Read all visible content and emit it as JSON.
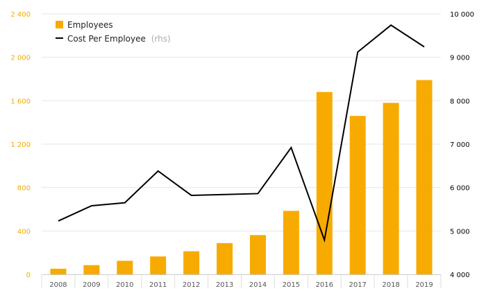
{
  "chart_data": {
    "type": "bar",
    "categories": [
      "2008",
      "2009",
      "2010",
      "2011",
      "2012",
      "2013",
      "2014",
      "2015",
      "2016",
      "2017",
      "2018",
      "2019"
    ],
    "series": [
      {
        "name": "Employees",
        "type": "bar",
        "axis": "left",
        "color": "#f7ab00",
        "values": [
          52,
          85,
          125,
          165,
          213,
          288,
          362,
          585,
          1680,
          1460,
          1580,
          1790
        ]
      },
      {
        "name": "Cost Per Employee",
        "axis_note": "(rhs)",
        "type": "line",
        "axis": "right",
        "color": "#000000",
        "values": [
          5230,
          5580,
          5650,
          6380,
          5820,
          5840,
          5860,
          6920,
          4790,
          9120,
          9740,
          9240
        ]
      }
    ],
    "y_left": {
      "ylim": [
        0,
        2400
      ],
      "ticks": [
        0,
        400,
        800,
        1200,
        1600,
        2000,
        2400
      ],
      "tick_labels": [
        "0",
        "400",
        "800",
        "1 200",
        "1 600",
        "2 000",
        "2 400"
      ],
      "color": "#f0ab00"
    },
    "y_right": {
      "ylim": [
        4000,
        10000
      ],
      "ticks": [
        4000,
        5000,
        6000,
        7000,
        8000,
        9000,
        10000
      ],
      "tick_labels": [
        "4 000",
        "5 000",
        "6 000",
        "7 000",
        "8 000",
        "9 000",
        "10 000"
      ],
      "color": "#000000"
    },
    "grid": true,
    "legend": {
      "position": "top-left"
    }
  }
}
